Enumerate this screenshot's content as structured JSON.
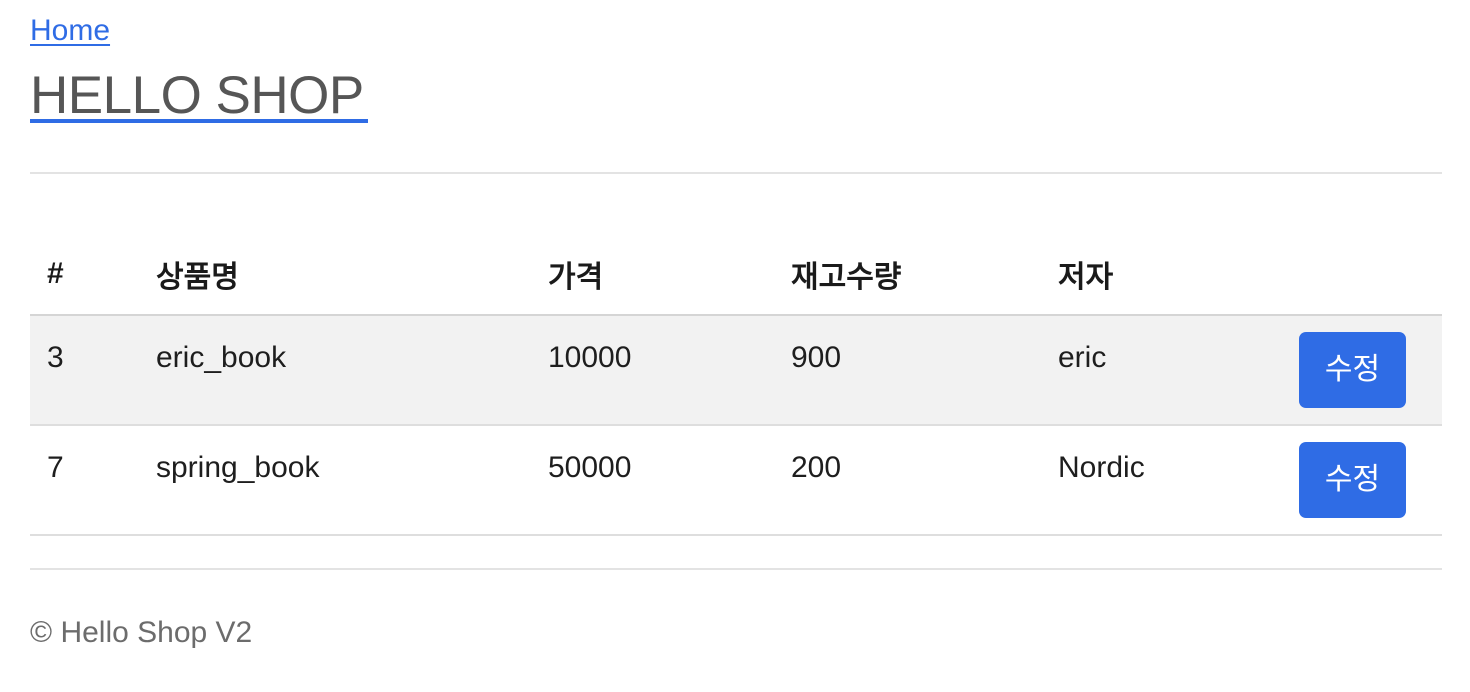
{
  "header": {
    "home_link": "Home",
    "title": "HELLO SHOP"
  },
  "table": {
    "headers": {
      "num": "#",
      "name": "상품명",
      "price": "가격",
      "stock": "재고수량",
      "author": "저자"
    },
    "rows": [
      {
        "id": "3",
        "name": "eric_book",
        "price": "10000",
        "stock": "900",
        "author": "eric",
        "action": "수정"
      },
      {
        "id": "7",
        "name": "spring_book",
        "price": "50000",
        "stock": "200",
        "author": "Nordic",
        "action": "수정"
      }
    ]
  },
  "footer": {
    "text": "© Hello Shop V2"
  },
  "colors": {
    "accent": "#2f6ce5",
    "title": "#565656",
    "footer": "#6c6c6c",
    "stripe": "#f2f2f2"
  }
}
